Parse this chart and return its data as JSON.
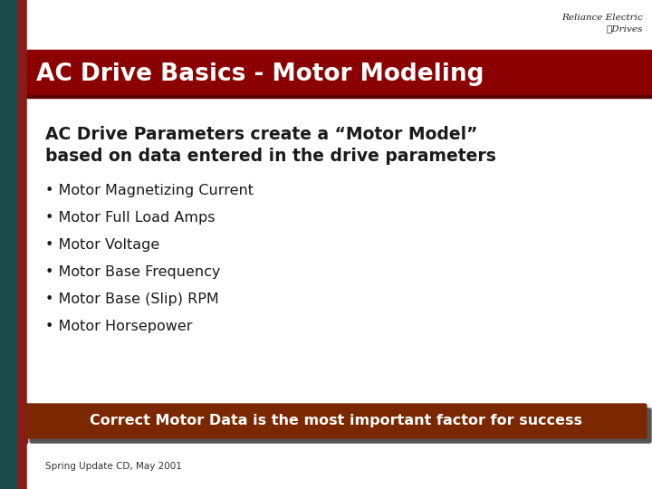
{
  "title": "AC Drive Basics - Motor Modeling",
  "title_bg": "#8B0000",
  "title_color": "#FFFFFF",
  "subtitle_line1": "AC Drive Parameters create a “Motor Model”",
  "subtitle_line2": "based on data entered in the drive parameters",
  "subtitle_color": "#1A1A1A",
  "bullet_items": [
    "• Motor Magnetizing Current",
    "• Motor Full Load Amps",
    "• Motor Voltage",
    "• Motor Base Frequency",
    "• Motor Base (Slip) RPM",
    "• Motor Horsepower"
  ],
  "bullet_color": "#1A1A1A",
  "footer_text": "Correct Motor Data is the most important factor for success",
  "footer_bg": "#7B2800",
  "footer_shadow": "#3A3A3A",
  "footer_color": "#FFFFFF",
  "caption": "Spring Update CD, May 2001",
  "bg_color": "#F0F0F0",
  "content_bg": "#FFFFFF",
  "left_teal": "#1A4A4A",
  "left_red": "#8B1A1A",
  "logo_text": "Reliance Electric  Drives"
}
